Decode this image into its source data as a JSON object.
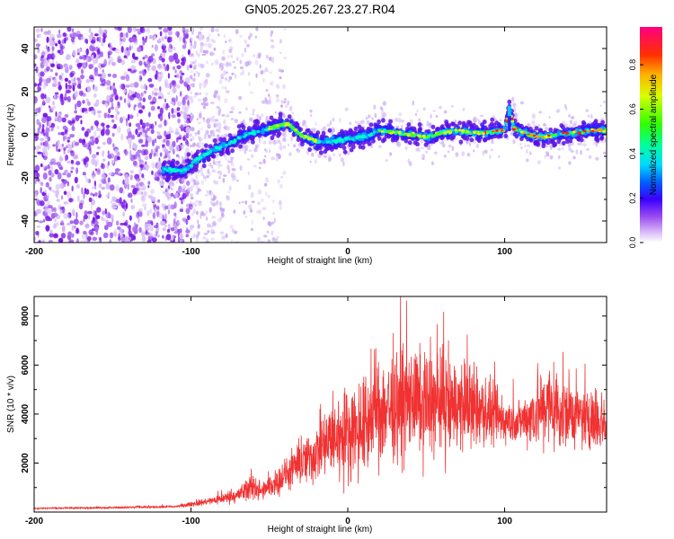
{
  "title": "GN05.2025.267.23.27.R04",
  "chart_data": [
    {
      "type": "heatmap",
      "xlabel": "Height of straight line (km)",
      "ylabel": "Frequency (Hz)",
      "xlim": [
        -200,
        165
      ],
      "ylim": [
        -50,
        50
      ],
      "xticks": [
        -200,
        -100,
        0,
        100
      ],
      "yticks": [
        -40,
        -20,
        0,
        20,
        40
      ],
      "colorbar": {
        "label": "Normalized spectral amplitude",
        "range": [
          0,
          0.97
        ],
        "ticks": [
          0.0,
          0.2,
          0.4,
          0.6,
          0.8
        ],
        "tick_labels": [
          "0.0",
          "0.2",
          "0.4",
          "0.6",
          "0.8"
        ]
      },
      "ridge": {
        "x": [
          -118,
          -105,
          -95,
          -85,
          -75,
          -65,
          -55,
          -45,
          -38,
          -30,
          -20,
          -10,
          0,
          10,
          20,
          30,
          40,
          50,
          60,
          70,
          80,
          90,
          100,
          103,
          106,
          115,
          125,
          135,
          145,
          155,
          165
        ],
        "y": [
          -16,
          -17,
          -11,
          -7,
          -4,
          0,
          2,
          4,
          5,
          0,
          -3,
          -3,
          -2,
          -1,
          2,
          1,
          0,
          -1,
          1,
          2,
          1,
          1,
          2,
          13,
          3,
          0,
          -1,
          0,
          1,
          2,
          2
        ]
      }
    },
    {
      "type": "line",
      "xlabel": "Height of straight line (km)",
      "ylabel": "SNR (10 * v/v)",
      "xlim": [
        -200,
        165
      ],
      "ylim": [
        0,
        8800
      ],
      "xticks": [
        -200,
        -100,
        0,
        100
      ],
      "yticks": [
        2000,
        4000,
        6000,
        8000
      ],
      "color": "#f03232",
      "envelope": {
        "x": [
          -200,
          -150,
          -110,
          -90,
          -70,
          -60,
          -55,
          -40,
          -20,
          -10,
          0,
          10,
          20,
          40,
          60,
          80,
          100,
          110,
          120,
          130,
          140,
          150,
          165
        ],
        "mean": [
          150,
          180,
          220,
          420,
          700,
          1100,
          800,
          1500,
          2400,
          3000,
          3200,
          3500,
          4200,
          4500,
          4400,
          4300,
          3700,
          3700,
          4100,
          4300,
          4100,
          3800,
          3700
        ],
        "amp": [
          40,
          50,
          60,
          200,
          400,
          900,
          500,
          900,
          1600,
          2300,
          2600,
          2800,
          3200,
          3000,
          2800,
          2400,
          1300,
          1100,
          2000,
          2600,
          2100,
          1600,
          1500
        ]
      }
    }
  ]
}
